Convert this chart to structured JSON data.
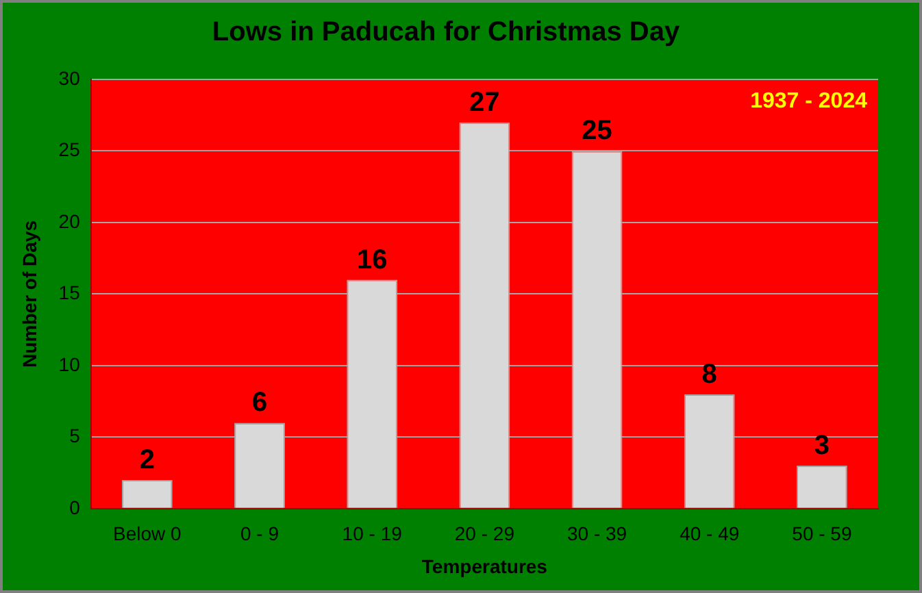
{
  "chart_data": {
    "type": "bar",
    "title": "Lows in Paducah for Christmas Day",
    "xlabel": "Temperatures",
    "ylabel": "Number of Days",
    "categories": [
      "Below 0",
      "0 - 9",
      "10 - 19",
      "20 - 29",
      "30 - 39",
      "40 - 49",
      "50 - 59"
    ],
    "values": [
      2,
      6,
      16,
      27,
      25,
      8,
      3
    ],
    "color": "#d9d9d9",
    "ylim": [
      0,
      30
    ],
    "yticks": [
      0,
      5,
      10,
      15,
      20,
      25,
      30
    ],
    "grid": "y",
    "data_labels": true,
    "legend": false,
    "annotations": [
      "1937 - 2024"
    ]
  }
}
